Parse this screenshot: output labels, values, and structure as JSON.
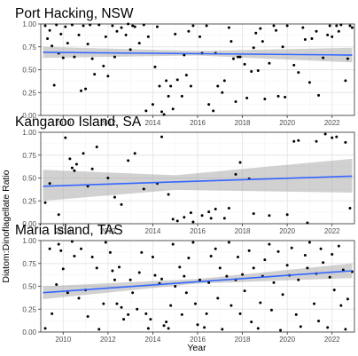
{
  "figure": {
    "xlabel": "Year",
    "ylabel": "Diatom:Dinoflagellate Ratio"
  },
  "chart_data": [
    {
      "type": "scatter",
      "title": "Port Hacking, NSW",
      "xlim": [
        2009,
        2023
      ],
      "ylim": [
        0,
        1
      ],
      "x_ticks": [
        2010,
        2012,
        2014,
        2016,
        2018,
        2020,
        2022
      ],
      "y_ticks": [
        0,
        0.25,
        0.5,
        0.75,
        1
      ],
      "y_tick_labels": [
        "0.00",
        "0.25",
        "0.50",
        "0.75",
        "1.00"
      ],
      "trend": {
        "x": [
          2009.1,
          2022.9
        ],
        "y": [
          0.69,
          0.66
        ]
      },
      "ci_band": {
        "x": [
          2009.1,
          2016.0,
          2022.9
        ],
        "lower": [
          0.63,
          0.655,
          0.58
        ],
        "upper": [
          0.75,
          0.705,
          0.74
        ]
      },
      "points": [
        [
          2009.2,
          0.98
        ],
        [
          2009.3,
          0.84
        ],
        [
          2009.4,
          0.93
        ],
        [
          2009.5,
          0.76
        ],
        [
          2009.6,
          0.33
        ],
        [
          2009.7,
          0.99
        ],
        [
          2009.8,
          0.68
        ],
        [
          2009.9,
          0.89
        ],
        [
          2010.0,
          0.63
        ],
        [
          2010.1,
          0.97
        ],
        [
          2010.2,
          0.79
        ],
        [
          2010.4,
          0.99
        ],
        [
          2010.5,
          0.64
        ],
        [
          2010.7,
          0.88
        ],
        [
          2010.8,
          0.27
        ],
        [
          2010.9,
          0.98
        ],
        [
          2011.0,
          0.29
        ],
        [
          2011.1,
          0.78
        ],
        [
          2011.2,
          0.99
        ],
        [
          2011.3,
          0.62
        ],
        [
          2011.4,
          0.45
        ],
        [
          2011.6,
          0.99
        ],
        [
          2011.8,
          0.54
        ],
        [
          2011.9,
          0.86
        ],
        [
          2012.0,
          0.43
        ],
        [
          2012.2,
          0.98
        ],
        [
          2012.3,
          0.64
        ],
        [
          2012.4,
          0.92
        ],
        [
          2012.6,
          0.96
        ],
        [
          2012.8,
          0.88
        ],
        [
          2012.9,
          1.0
        ],
        [
          2013.0,
          0.72
        ],
        [
          2013.1,
          0.98
        ],
        [
          2013.2,
          0.97
        ],
        [
          2013.4,
          0.79
        ],
        [
          2013.6,
          0.99
        ],
        [
          2013.7,
          0.05
        ],
        [
          2013.8,
          0.86
        ],
        [
          2014.0,
          0.12
        ],
        [
          2014.1,
          0.53
        ],
        [
          2014.2,
          0.97
        ],
        [
          2014.3,
          0.32
        ],
        [
          2014.4,
          0.04
        ],
        [
          2014.5,
          0.01
        ],
        [
          2014.6,
          0.38
        ],
        [
          2014.7,
          0.21
        ],
        [
          2014.8,
          0.32
        ],
        [
          2014.9,
          0.07
        ],
        [
          2015.0,
          0.89
        ],
        [
          2015.1,
          0.39
        ],
        [
          2015.3,
          0.21
        ],
        [
          2015.4,
          0.66
        ],
        [
          2015.5,
          0.44
        ],
        [
          2015.6,
          0.92
        ],
        [
          2015.7,
          0.32
        ],
        [
          2015.8,
          0.98
        ],
        [
          2016.1,
          0.86
        ],
        [
          2016.2,
          0.68
        ],
        [
          2016.4,
          0.98
        ],
        [
          2016.5,
          0.12
        ],
        [
          2016.7,
          0.05
        ],
        [
          2016.8,
          0.68
        ],
        [
          2016.9,
          0.32
        ],
        [
          2017.1,
          0.25
        ],
        [
          2017.2,
          0.38
        ],
        [
          2017.4,
          0.96
        ],
        [
          2017.5,
          0.81
        ],
        [
          2017.6,
          0.62
        ],
        [
          2017.7,
          0.15
        ],
        [
          2017.8,
          0.64
        ],
        [
          2017.9,
          0.64
        ],
        [
          2018.1,
          0.56
        ],
        [
          2018.2,
          0.19
        ],
        [
          2018.4,
          0.48
        ],
        [
          2018.5,
          0.74
        ],
        [
          2018.6,
          0.9
        ],
        [
          2018.7,
          0.49
        ],
        [
          2018.8,
          0.95
        ],
        [
          2018.9,
          0.81
        ],
        [
          2019.0,
          0.18
        ],
        [
          2019.2,
          0.57
        ],
        [
          2019.4,
          0.98
        ],
        [
          2019.5,
          0.93
        ],
        [
          2019.6,
          0.21
        ],
        [
          2019.8,
          0.75
        ],
        [
          2019.9,
          0.2
        ],
        [
          2020.0,
          0.98
        ],
        [
          2020.3,
          0.55
        ],
        [
          2020.5,
          0.47
        ],
        [
          2020.7,
          0.96
        ],
        [
          2020.8,
          0.83
        ],
        [
          2021.0,
          0.36
        ],
        [
          2021.1,
          0.84
        ],
        [
          2021.3,
          0.92
        ],
        [
          2021.4,
          0.22
        ],
        [
          2021.6,
          0.63
        ],
        [
          2021.8,
          0.88
        ],
        [
          2021.9,
          0.98
        ],
        [
          2022.0,
          0.86
        ],
        [
          2022.2,
          0.98
        ],
        [
          2022.3,
          0.92
        ],
        [
          2022.4,
          0.99
        ],
        [
          2022.6,
          0.38
        ],
        [
          2022.7,
          0.62
        ],
        [
          2022.8,
          0.98
        ],
        [
          2022.9,
          0.96
        ]
      ]
    },
    {
      "type": "scatter",
      "title": "Kangaroo Island, SA",
      "xlim": [
        2009,
        2023
      ],
      "ylim": [
        0,
        1
      ],
      "x_ticks": [
        2010,
        2012,
        2014,
        2016,
        2018,
        2020,
        2022
      ],
      "y_ticks": [
        0,
        0.25,
        0.5,
        0.75,
        1
      ],
      "y_tick_labels": [
        "0.00",
        "0.25",
        "0.50",
        "0.75",
        "1.00"
      ],
      "trend": {
        "x": [
          2009.1,
          2022.9
        ],
        "y": [
          0.41,
          0.52
        ]
      },
      "ci_band": {
        "x": [
          2009.1,
          2015.0,
          2022.9
        ],
        "lower": [
          0.25,
          0.37,
          0.34
        ],
        "upper": [
          0.59,
          0.53,
          0.71
        ]
      },
      "points": [
        [
          2009.2,
          0.23
        ],
        [
          2009.4,
          0.44
        ],
        [
          2009.8,
          0.1
        ],
        [
          2010.1,
          0.94
        ],
        [
          2010.3,
          0.71
        ],
        [
          2010.4,
          0.61
        ],
        [
          2010.5,
          0.58
        ],
        [
          2010.6,
          0.65
        ],
        [
          2010.9,
          0.77
        ],
        [
          2011.1,
          0.41
        ],
        [
          2011.3,
          0.6
        ],
        [
          2011.5,
          0.84
        ],
        [
          2012.0,
          0.5
        ],
        [
          2012.3,
          0.29
        ],
        [
          2012.6,
          0.21
        ],
        [
          2012.9,
          0.69
        ],
        [
          2013.2,
          0.77
        ],
        [
          2013.6,
          0.38
        ],
        [
          2014.2,
          0.44
        ],
        [
          2014.4,
          0.95
        ],
        [
          2014.7,
          0.32
        ],
        [
          2014.9,
          0.05
        ],
        [
          2015.1,
          0.03
        ],
        [
          2015.4,
          0.07
        ],
        [
          2015.7,
          0.12
        ],
        [
          2015.8,
          0.02
        ],
        [
          2016.2,
          0.09
        ],
        [
          2016.5,
          0.13
        ],
        [
          2016.6,
          0.06
        ],
        [
          2016.8,
          0.16
        ],
        [
          2017.2,
          0.06
        ],
        [
          2017.4,
          0.17
        ],
        [
          2017.7,
          0.54
        ],
        [
          2017.9,
          0.67
        ],
        [
          2018.3,
          0.49
        ],
        [
          2018.5,
          0.11
        ],
        [
          2019.2,
          0.09
        ],
        [
          2020.0,
          0.1
        ],
        [
          2020.3,
          0.9
        ],
        [
          2020.5,
          0.91
        ],
        [
          2020.9,
          0.01
        ],
        [
          2021.3,
          0.9
        ],
        [
          2021.7,
          0.98
        ],
        [
          2022.0,
          0.94
        ],
        [
          2022.2,
          0.95
        ],
        [
          2022.6,
          0.89
        ],
        [
          2022.8,
          0.17
        ]
      ]
    },
    {
      "type": "scatter",
      "title": "Maria Island, TAS",
      "xlim": [
        2009,
        2023
      ],
      "ylim": [
        0,
        1
      ],
      "x_ticks": [
        2010,
        2012,
        2014,
        2016,
        2018,
        2020,
        2022
      ],
      "y_ticks": [
        0,
        0.25,
        0.5,
        0.75,
        1
      ],
      "y_tick_labels": [
        "0.00",
        "0.25",
        "0.50",
        "0.75",
        "1.00"
      ],
      "xlabel": "Year",
      "trend": {
        "x": [
          2009.1,
          2022.9
        ],
        "y": [
          0.43,
          0.67
        ]
      },
      "ci_band": {
        "x": [
          2009.1,
          2016.0,
          2022.9
        ],
        "lower": [
          0.36,
          0.53,
          0.59
        ],
        "upper": [
          0.5,
          0.58,
          0.75
        ]
      },
      "points": [
        [
          2009.2,
          0.04
        ],
        [
          2009.4,
          0.91
        ],
        [
          2009.5,
          0.2
        ],
        [
          2009.7,
          0.52
        ],
        [
          2009.8,
          0.96
        ],
        [
          2009.9,
          0.89
        ],
        [
          2010.0,
          0.69
        ],
        [
          2010.2,
          0.43
        ],
        [
          2010.4,
          0.99
        ],
        [
          2010.5,
          0.83
        ],
        [
          2010.7,
          0.37
        ],
        [
          2010.8,
          0.91
        ],
        [
          2011.0,
          0.46
        ],
        [
          2011.1,
          0.17
        ],
        [
          2011.3,
          0.82
        ],
        [
          2011.5,
          0.7
        ],
        [
          2011.6,
          0.03
        ],
        [
          2011.8,
          0.31
        ],
        [
          2011.9,
          0.98
        ],
        [
          2012.1,
          0.87
        ],
        [
          2012.2,
          0.67
        ],
        [
          2012.3,
          0.57
        ],
        [
          2012.4,
          0.31
        ],
        [
          2012.5,
          0.71
        ],
        [
          2012.6,
          0.27
        ],
        [
          2012.7,
          0.14
        ],
        [
          2012.9,
          0.19
        ],
        [
          2013.0,
          0.57
        ],
        [
          2013.1,
          0.43
        ],
        [
          2013.3,
          0.25
        ],
        [
          2013.4,
          0.65
        ],
        [
          2013.5,
          0.87
        ],
        [
          2013.7,
          0.2
        ],
        [
          2013.8,
          0.04
        ],
        [
          2013.9,
          0.14
        ],
        [
          2014.0,
          0.82
        ],
        [
          2014.1,
          0.62
        ],
        [
          2014.3,
          0.53
        ],
        [
          2014.4,
          0.58
        ],
        [
          2014.5,
          0.07
        ],
        [
          2014.6,
          0.11
        ],
        [
          2014.7,
          0.04
        ],
        [
          2014.8,
          0.29
        ],
        [
          2014.9,
          0.96
        ],
        [
          2015.0,
          0.5
        ],
        [
          2015.2,
          0.71
        ],
        [
          2015.3,
          0.19
        ],
        [
          2015.4,
          0.61
        ],
        [
          2015.5,
          0.43
        ],
        [
          2015.6,
          0.81
        ],
        [
          2015.8,
          0.98
        ],
        [
          2015.9,
          0.31
        ],
        [
          2016.0,
          0.08
        ],
        [
          2016.1,
          0.57
        ],
        [
          2016.3,
          0.05
        ],
        [
          2016.4,
          0.2
        ],
        [
          2016.5,
          0.54
        ],
        [
          2016.6,
          0.83
        ],
        [
          2016.8,
          0.91
        ],
        [
          2016.9,
          0.37
        ],
        [
          2017.0,
          0.7
        ],
        [
          2017.1,
          0.03
        ],
        [
          2017.3,
          0.61
        ],
        [
          2017.4,
          0.98
        ],
        [
          2017.5,
          0.29
        ],
        [
          2017.7,
          0.57
        ],
        [
          2017.8,
          0.82
        ],
        [
          2017.9,
          0.2
        ],
        [
          2018.0,
          0.63
        ],
        [
          2018.1,
          0.45
        ],
        [
          2018.3,
          0.89
        ],
        [
          2018.4,
          0.11
        ],
        [
          2018.5,
          0.7
        ],
        [
          2018.7,
          0.04
        ],
        [
          2018.8,
          0.32
        ],
        [
          2018.9,
          0.61
        ],
        [
          2019.0,
          0.79
        ],
        [
          2019.2,
          0.96
        ],
        [
          2019.3,
          0.24
        ],
        [
          2019.4,
          0.54
        ],
        [
          2019.6,
          0.88
        ],
        [
          2019.7,
          0.02
        ],
        [
          2019.8,
          0.41
        ],
        [
          2020.0,
          0.73
        ],
        [
          2020.1,
          0.62
        ],
        [
          2020.2,
          0.92
        ],
        [
          2020.4,
          0.19
        ],
        [
          2020.5,
          0.57
        ],
        [
          2020.6,
          0.06
        ],
        [
          2020.8,
          0.84
        ],
        [
          2020.9,
          0.7
        ],
        [
          2021.0,
          0.98
        ],
        [
          2021.2,
          0.31
        ],
        [
          2021.3,
          0.64
        ],
        [
          2021.4,
          0.12
        ],
        [
          2021.5,
          0.91
        ],
        [
          2021.6,
          0.76
        ],
        [
          2021.8,
          0.05
        ],
        [
          2021.9,
          0.6
        ],
        [
          2022.0,
          0.85
        ],
        [
          2022.1,
          0.46
        ],
        [
          2022.3,
          0.94
        ],
        [
          2022.4,
          0.29
        ],
        [
          2022.5,
          0.68
        ],
        [
          2022.6,
          0.03
        ],
        [
          2022.7,
          0.36
        ],
        [
          2022.9,
          0.66
        ]
      ]
    }
  ]
}
